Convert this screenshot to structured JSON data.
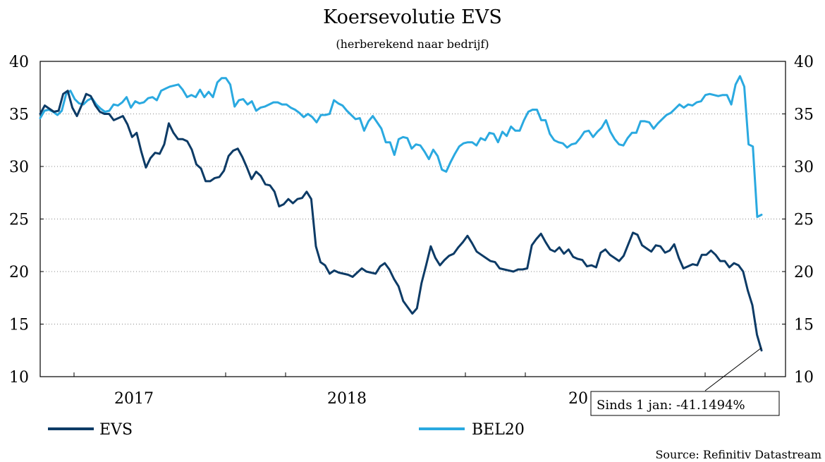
{
  "chart_data": {
    "type": "line",
    "title": "Koersevolutie EVS",
    "subtitle": "(herberekend naar bedrijf)",
    "source": "Source: Refinitiv Datastream",
    "annotation": "Sinds 1 jan: -41.1494%",
    "x_tick_labels": [
      "2017",
      "2018",
      "20"
    ],
    "y_ticks": [
      10,
      15,
      20,
      25,
      30,
      35,
      40
    ],
    "ylim": [
      10,
      40
    ],
    "grid": "horizontal dotted",
    "legend_position": "bottom",
    "colors": {
      "EVS": "#0d3b66",
      "BEL20": "#2aa9e0"
    },
    "series": [
      {
        "name": "EVS",
        "values": [
          35.0,
          35.8,
          35.5,
          35.2,
          35.3,
          36.9,
          37.2,
          35.6,
          34.8,
          35.8,
          36.9,
          36.7,
          35.8,
          35.2,
          35.0,
          35.0,
          34.4,
          34.6,
          34.8,
          34.0,
          32.8,
          33.2,
          31.4,
          29.9,
          30.8,
          31.3,
          31.2,
          32.1,
          34.1,
          33.2,
          32.6,
          32.6,
          32.4,
          31.6,
          30.2,
          29.8,
          28.6,
          28.6,
          28.9,
          29.0,
          29.6,
          31.0,
          31.5,
          31.7,
          30.9,
          29.9,
          28.8,
          29.5,
          29.1,
          28.3,
          28.2,
          27.6,
          26.2,
          26.4,
          26.9,
          26.5,
          26.9,
          27.0,
          27.6,
          26.9,
          22.4,
          20.9,
          20.6,
          19.8,
          20.1,
          19.9,
          19.8,
          19.7,
          19.5,
          19.9,
          20.3,
          20.0,
          19.9,
          19.8,
          20.5,
          20.8,
          20.2,
          19.3,
          18.6,
          17.2,
          16.6,
          16.0,
          16.5,
          18.9,
          20.6,
          22.4,
          21.3,
          20.6,
          21.1,
          21.5,
          21.7,
          22.3,
          22.8,
          23.4,
          22.7,
          21.9,
          21.6,
          21.3,
          21.0,
          20.9,
          20.3,
          20.2,
          20.1,
          20.0,
          20.2,
          20.2,
          20.3,
          22.5,
          23.1,
          23.6,
          22.8,
          22.1,
          21.9,
          22.3,
          21.7,
          22.1,
          21.4,
          21.2,
          21.1,
          20.5,
          20.6,
          20.4,
          21.8,
          22.1,
          21.6,
          21.3,
          21.0,
          21.5,
          22.6,
          23.7,
          23.5,
          22.5,
          22.2,
          21.9,
          22.5,
          22.4,
          21.8,
          22.0,
          22.6,
          21.3,
          20.3,
          20.5,
          20.7,
          20.6,
          21.6,
          21.6,
          22.0,
          21.6,
          21.0,
          21.0,
          20.4,
          20.8,
          20.6,
          20.0,
          18.2,
          16.8,
          14.0,
          12.5
        ]
      },
      {
        "name": "BEL20",
        "values": [
          34.6,
          35.3,
          35.4,
          35.2,
          34.9,
          35.3,
          36.9,
          37.2,
          36.4,
          36.0,
          35.9,
          36.3,
          36.5,
          35.9,
          35.5,
          35.2,
          35.3,
          35.9,
          35.8,
          36.1,
          36.6,
          35.6,
          36.2,
          36.0,
          36.1,
          36.5,
          36.6,
          36.3,
          37.2,
          37.4,
          37.6,
          37.7,
          37.8,
          37.3,
          36.6,
          36.8,
          36.6,
          37.3,
          36.6,
          37.1,
          36.6,
          38.0,
          38.4,
          38.4,
          37.8,
          35.7,
          36.3,
          36.4,
          35.9,
          36.2,
          35.3,
          35.6,
          35.7,
          35.9,
          36.1,
          36.1,
          35.9,
          35.9,
          35.6,
          35.4,
          35.1,
          34.7,
          35.0,
          34.7,
          34.2,
          34.9,
          34.9,
          35.0,
          36.3,
          36.0,
          35.8,
          35.3,
          34.9,
          34.5,
          34.6,
          33.4,
          34.3,
          34.8,
          34.2,
          33.6,
          32.3,
          32.3,
          31.1,
          32.6,
          32.8,
          32.7,
          31.7,
          32.1,
          32.0,
          31.4,
          30.7,
          31.6,
          31.0,
          29.7,
          29.5,
          30.4,
          31.2,
          31.9,
          32.2,
          32.3,
          32.3,
          32.0,
          32.7,
          32.5,
          33.2,
          33.1,
          32.3,
          33.3,
          32.9,
          33.8,
          33.4,
          33.4,
          34.4,
          35.2,
          35.4,
          35.4,
          34.4,
          34.4,
          33.1,
          32.5,
          32.3,
          32.2,
          31.8,
          32.1,
          32.2,
          32.7,
          33.3,
          33.4,
          32.8,
          33.3,
          33.7,
          34.4,
          33.3,
          32.6,
          32.1,
          32.0,
          32.7,
          33.2,
          33.2,
          34.3,
          34.3,
          34.2,
          33.6,
          34.1,
          34.5,
          34.9,
          35.1,
          35.5,
          35.9,
          35.6,
          35.9,
          35.8,
          36.1,
          36.2,
          36.8,
          36.9,
          36.8,
          36.7,
          36.8,
          36.8,
          35.9,
          37.8,
          38.6,
          37.6,
          32.1,
          31.9,
          25.2,
          25.4
        ]
      }
    ]
  }
}
